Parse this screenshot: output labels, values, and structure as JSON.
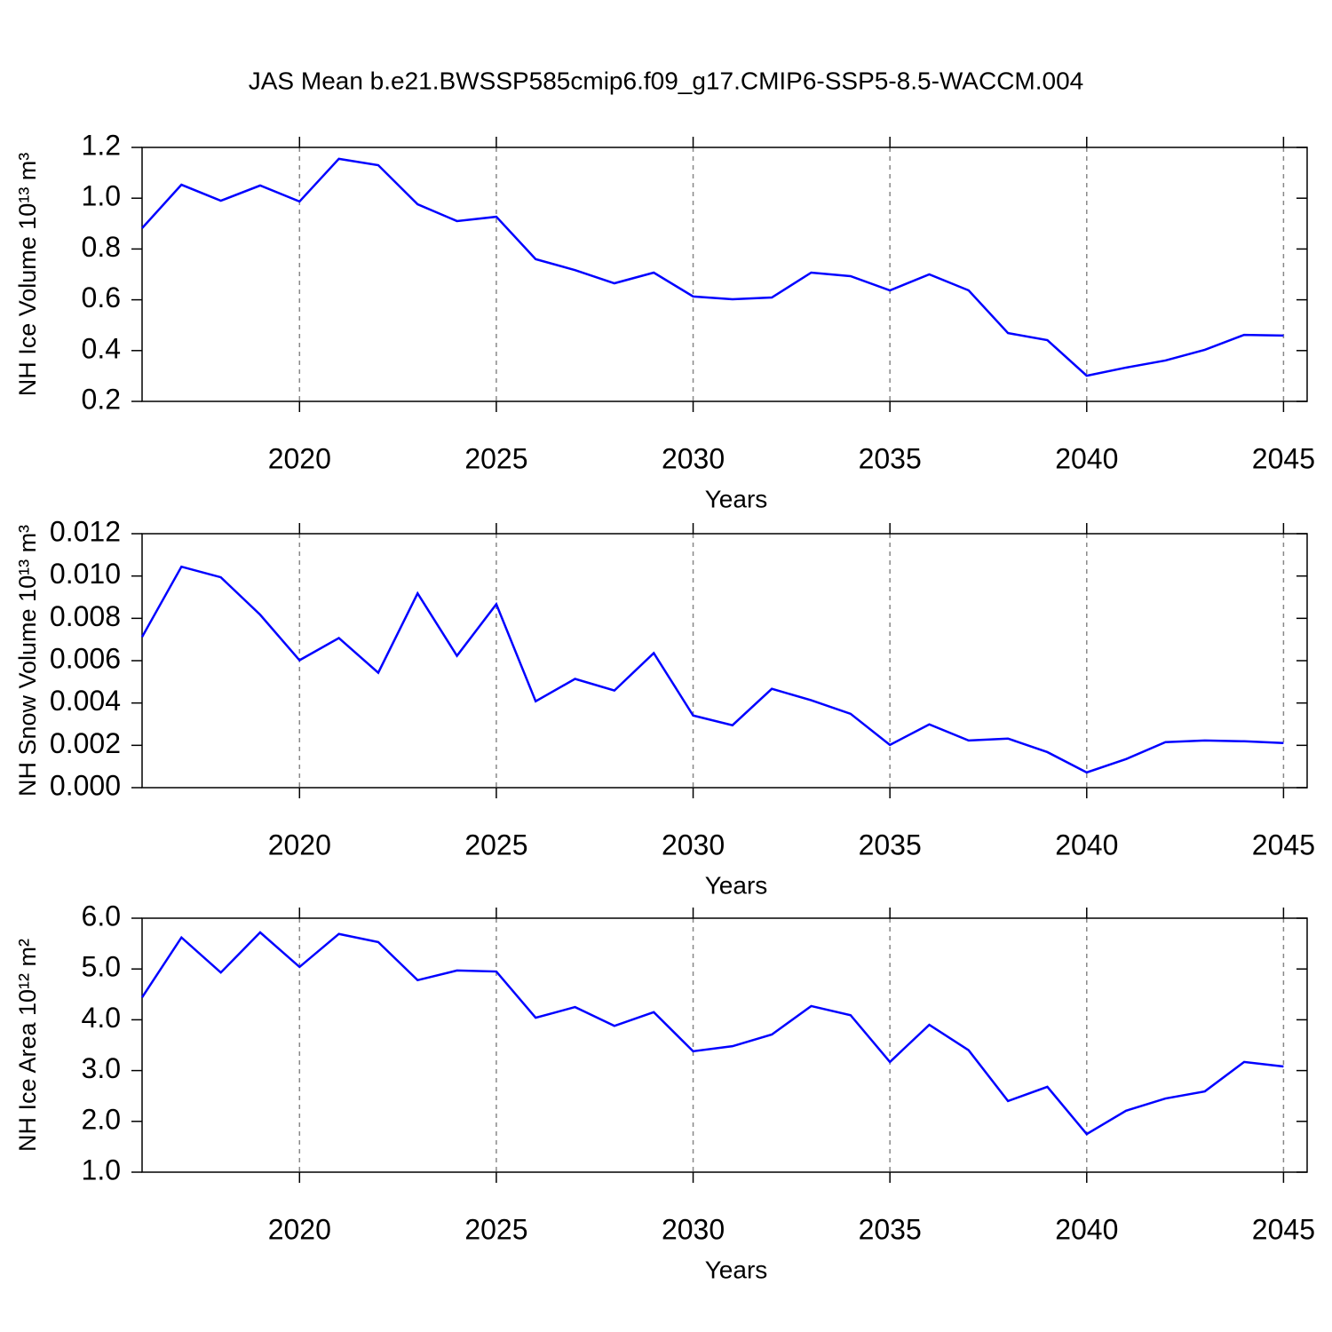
{
  "chart_data": [
    {
      "type": "line",
      "title": "JAS Mean b.e21.BWSSP585cmip6.f09_g17.CMIP6-SSP5-8.5-WACCM.004",
      "ylabel": "NH Ice Volume 10¹³ m³",
      "xlabel": "Years",
      "x": [
        2016,
        2017,
        2018,
        2019,
        2020,
        2021,
        2022,
        2023,
        2024,
        2025,
        2026,
        2027,
        2028,
        2029,
        2030,
        2031,
        2032,
        2033,
        2034,
        2035,
        2036,
        2037,
        2038,
        2039,
        2040,
        2041,
        2042,
        2043,
        2044,
        2045
      ],
      "values": [
        0.882,
        1.053,
        0.99,
        1.05,
        0.987,
        1.155,
        1.13,
        0.976,
        0.91,
        0.927,
        0.76,
        0.717,
        0.665,
        0.707,
        0.613,
        0.602,
        0.609,
        0.707,
        0.693,
        0.637,
        0.7,
        0.637,
        0.469,
        0.441,
        0.301,
        0.333,
        0.361,
        0.403,
        0.462,
        0.459
      ],
      "color": "#0000ff",
      "xlim": [
        2016,
        2045.6
      ],
      "xticks": [
        2020,
        2025,
        2030,
        2035,
        2040,
        2045
      ],
      "ylim": [
        0.2,
        1.2
      ],
      "yticks": [
        0.2,
        0.4,
        0.6,
        0.8,
        {
          "value": 1.0,
          "label": "1.0"
        },
        1.2
      ],
      "grid": "x"
    },
    {
      "type": "line",
      "ylabel": "NH Snow Volume 10¹³ m³",
      "xlabel": "Years",
      "x": [
        2016,
        2017,
        2018,
        2019,
        2020,
        2021,
        2022,
        2023,
        2024,
        2025,
        2026,
        2027,
        2028,
        2029,
        2030,
        2031,
        2032,
        2033,
        2034,
        2035,
        2036,
        2037,
        2038,
        2039,
        2040,
        2041,
        2042,
        2043,
        2044,
        2045
      ],
      "values": [
        0.00712,
        0.01044,
        0.00994,
        0.00817,
        0.00602,
        0.00707,
        0.00543,
        0.00918,
        0.00623,
        0.00867,
        0.00408,
        0.00514,
        0.00459,
        0.00636,
        0.00341,
        0.00295,
        0.00467,
        0.00413,
        0.00349,
        0.00202,
        0.00299,
        0.00223,
        0.00232,
        0.00168,
        0.00072,
        0.00135,
        0.00215,
        0.00223,
        0.00219,
        0.00211
      ],
      "color": "#0000ff",
      "xlim": [
        2016,
        2045.6
      ],
      "xticks": [
        2020,
        2025,
        2030,
        2035,
        2040,
        2045
      ],
      "ylim": [
        0,
        0.012
      ],
      "yticks": [
        {
          "value": 0,
          "label": "0.000"
        },
        {
          "value": 0.002,
          "label": "0.002"
        },
        {
          "value": 0.004,
          "label": "0.004"
        },
        {
          "value": 0.006,
          "label": "0.006"
        },
        {
          "value": 0.008,
          "label": "0.008"
        },
        {
          "value": 0.01,
          "label": "0.010"
        },
        {
          "value": 0.012,
          "label": "0.012"
        }
      ],
      "grid": "x"
    },
    {
      "type": "line",
      "ylabel": "NH Ice Area 10¹² m²",
      "xlabel": "Years",
      "x": [
        2016,
        2017,
        2018,
        2019,
        2020,
        2021,
        2022,
        2023,
        2024,
        2025,
        2026,
        2027,
        2028,
        2029,
        2030,
        2031,
        2032,
        2033,
        2034,
        2035,
        2036,
        2037,
        2038,
        2039,
        2040,
        2041,
        2042,
        2043,
        2044,
        2045
      ],
      "values": [
        4.44,
        5.62,
        4.93,
        5.72,
        5.04,
        5.69,
        5.53,
        4.78,
        4.97,
        4.95,
        4.04,
        4.25,
        3.88,
        4.15,
        3.38,
        3.48,
        3.71,
        4.27,
        4.09,
        3.17,
        3.9,
        3.4,
        2.4,
        2.68,
        1.75,
        2.21,
        2.45,
        2.59,
        3.17,
        3.08
      ],
      "color": "#0000ff",
      "xlim": [
        2016,
        2045.6
      ],
      "xticks": [
        2020,
        2025,
        2030,
        2035,
        2040,
        2045
      ],
      "ylim": [
        1,
        6
      ],
      "yticks": [
        {
          "value": 1,
          "label": "1.0"
        },
        {
          "value": 2,
          "label": "2.0"
        },
        {
          "value": 3,
          "label": "3.0"
        },
        {
          "value": 4,
          "label": "4.0"
        },
        {
          "value": 5,
          "label": "5.0"
        },
        {
          "value": 6,
          "label": "6.0"
        }
      ],
      "grid": "x"
    }
  ]
}
